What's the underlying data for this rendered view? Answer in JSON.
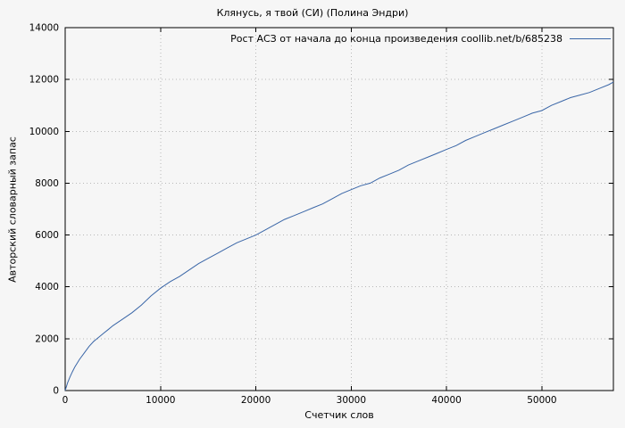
{
  "chart_data": {
    "type": "line",
    "title": "Клянусь, я твой (СИ) (Полина Эндри)",
    "legend": "Рост АСЗ от начала до конца произведения coollib.net/b/685238",
    "xlabel": "Счетчик слов",
    "ylabel": "Авторский словарный запас",
    "xlim": [
      0,
      57500
    ],
    "ylim": [
      0,
      14000
    ],
    "xticks": [
      0,
      10000,
      20000,
      30000,
      40000,
      50000
    ],
    "yticks": [
      0,
      2000,
      4000,
      6000,
      8000,
      10000,
      12000,
      14000
    ],
    "grid": true,
    "legend_position": "top-right",
    "line_color": "#3a66a7",
    "grid_color": "#b8b8b8",
    "frame_color": "#000000",
    "background_color": "#f6f6f6",
    "series": [
      {
        "name": "Рост АСЗ",
        "points": [
          [
            0,
            0
          ],
          [
            250,
            300
          ],
          [
            500,
            520
          ],
          [
            750,
            720
          ],
          [
            1000,
            900
          ],
          [
            1500,
            1200
          ],
          [
            2000,
            1450
          ],
          [
            2500,
            1700
          ],
          [
            3000,
            1900
          ],
          [
            3500,
            2050
          ],
          [
            4000,
            2200
          ],
          [
            4500,
            2350
          ],
          [
            5000,
            2500
          ],
          [
            6000,
            2750
          ],
          [
            7000,
            3000
          ],
          [
            8000,
            3300
          ],
          [
            9000,
            3650
          ],
          [
            10000,
            3950
          ],
          [
            11000,
            4200
          ],
          [
            12000,
            4400
          ],
          [
            13000,
            4650
          ],
          [
            14000,
            4900
          ],
          [
            15000,
            5100
          ],
          [
            16000,
            5300
          ],
          [
            17000,
            5500
          ],
          [
            18000,
            5700
          ],
          [
            19000,
            5850
          ],
          [
            20000,
            6000
          ],
          [
            21000,
            6200
          ],
          [
            22000,
            6400
          ],
          [
            23000,
            6600
          ],
          [
            24000,
            6750
          ],
          [
            25000,
            6900
          ],
          [
            26000,
            7050
          ],
          [
            27000,
            7200
          ],
          [
            28000,
            7400
          ],
          [
            29000,
            7600
          ],
          [
            30000,
            7750
          ],
          [
            31000,
            7900
          ],
          [
            32000,
            8000
          ],
          [
            33000,
            8200
          ],
          [
            34000,
            8350
          ],
          [
            35000,
            8500
          ],
          [
            36000,
            8700
          ],
          [
            37000,
            8850
          ],
          [
            38000,
            9000
          ],
          [
            39000,
            9150
          ],
          [
            40000,
            9300
          ],
          [
            41000,
            9450
          ],
          [
            42000,
            9650
          ],
          [
            43000,
            9800
          ],
          [
            44000,
            9950
          ],
          [
            45000,
            10100
          ],
          [
            46000,
            10250
          ],
          [
            47000,
            10400
          ],
          [
            48000,
            10550
          ],
          [
            49000,
            10700
          ],
          [
            50000,
            10800
          ],
          [
            51000,
            11000
          ],
          [
            52000,
            11150
          ],
          [
            53000,
            11300
          ],
          [
            54000,
            11400
          ],
          [
            55000,
            11500
          ],
          [
            56000,
            11650
          ],
          [
            57000,
            11800
          ],
          [
            57500,
            11900
          ]
        ]
      }
    ]
  }
}
